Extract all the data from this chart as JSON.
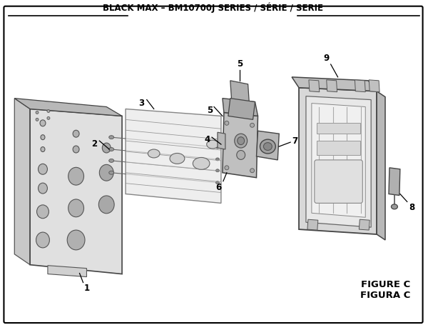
{
  "title": "BLACK MAX – BM10700J SERIES / SÉRIE / SERIE",
  "figure_label": "FIGURE C",
  "figura_label": "FIGURA C",
  "bg_color": "#ffffff",
  "border_color": "#000000",
  "anno_fontsize": 8.5,
  "title_fontsize": 8.5
}
